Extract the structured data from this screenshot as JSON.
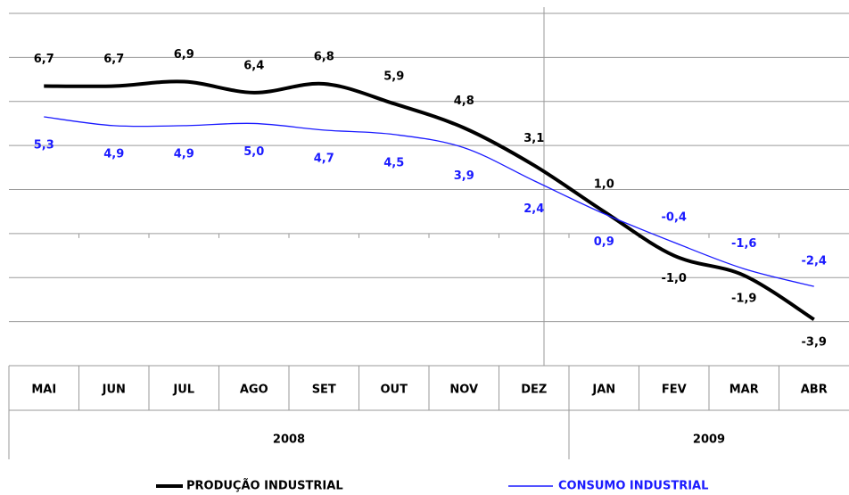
{
  "chart_data": {
    "type": "line",
    "categories": [
      "MAI",
      "JUN",
      "JUL",
      "AGO",
      "SET",
      "OUT",
      "NOV",
      "DEZ",
      "JAN",
      "FEV",
      "MAR",
      "ABR"
    ],
    "groups": [
      "2008",
      "2009"
    ],
    "series": [
      {
        "name": "PRODUÇÃO INDUSTRIAL",
        "color": "#000000",
        "values": [
          6.7,
          6.7,
          6.9,
          6.4,
          6.8,
          5.9,
          4.8,
          3.1,
          1.0,
          -1.0,
          -1.9,
          -3.9
        ],
        "value_labels": [
          "6,7",
          "6,7",
          "6,9",
          "6,4",
          "6,8",
          "5,9",
          "4,8",
          "3,1",
          "1,0",
          "-1,0",
          "-1,9",
          "-3,9"
        ]
      },
      {
        "name": "CONSUMO INDUSTRIAL",
        "color": "#1a1aff",
        "values": [
          5.3,
          4.9,
          4.9,
          5.0,
          4.7,
          4.5,
          3.9,
          2.4,
          0.9,
          -0.4,
          -1.6,
          -2.4
        ],
        "value_labels": [
          "5,3",
          "4,9",
          "4,9",
          "5,0",
          "4,7",
          "4,5",
          "3,9",
          "2,4",
          "0,9",
          "-0,4",
          "-1,6",
          "-2,4"
        ]
      }
    ],
    "ylim": [
      -6,
      10
    ],
    "grid": true
  }
}
